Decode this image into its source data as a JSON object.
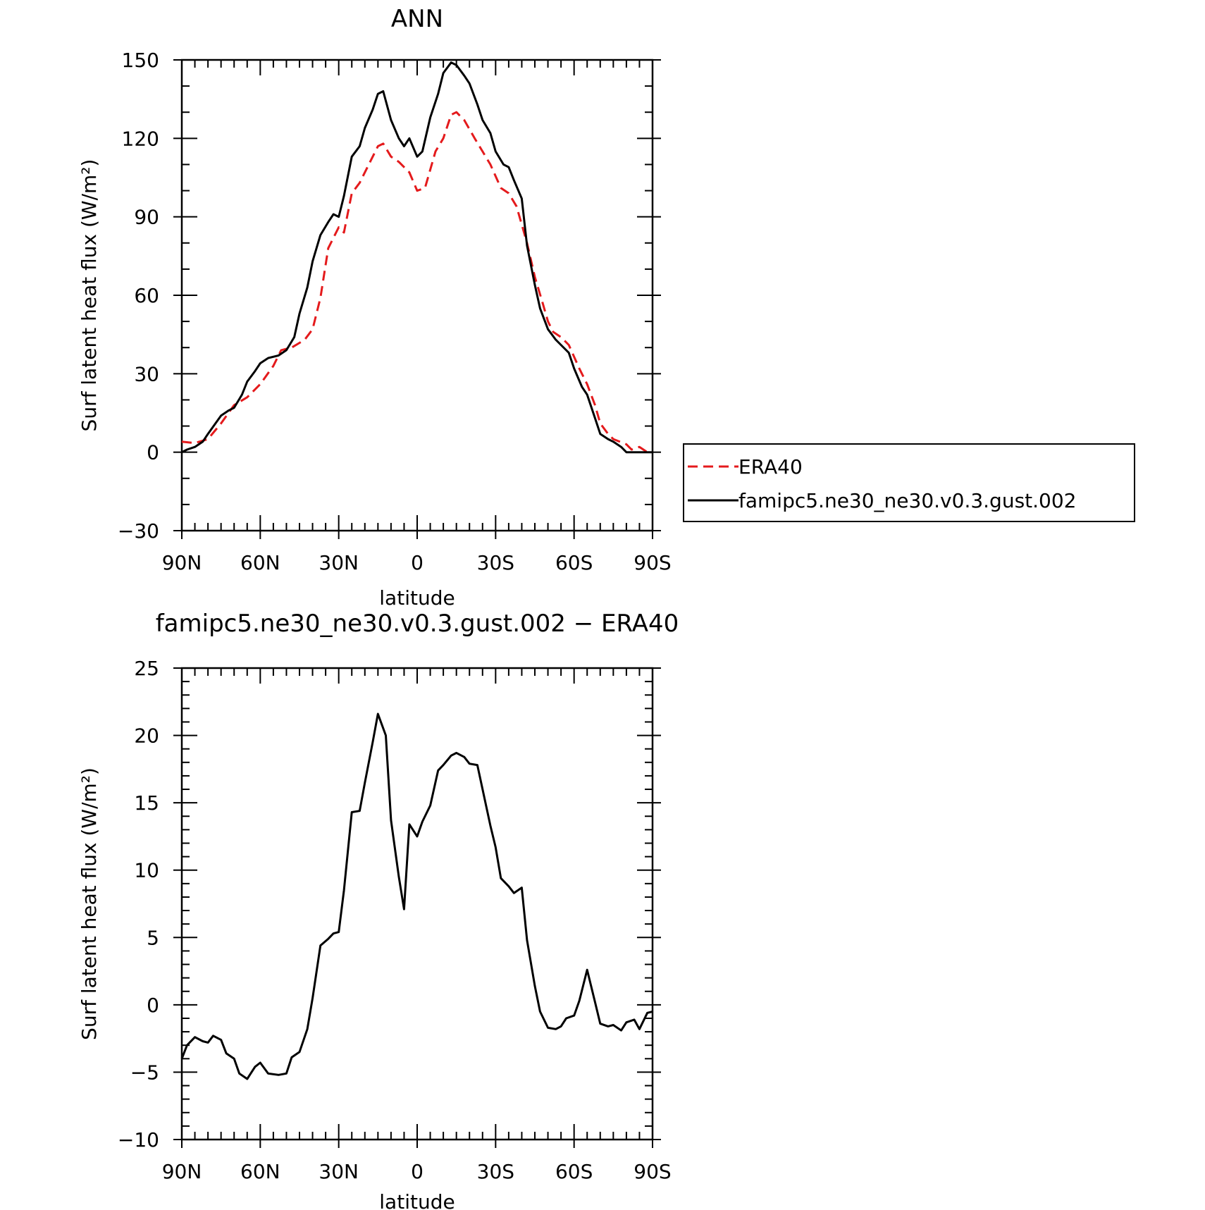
{
  "chart_data": [
    {
      "type": "line",
      "title": "ANN",
      "xlabel": "latitude",
      "ylabel": "Surf latent heat flux (W/m²)",
      "xlim": [
        90,
        -90
      ],
      "ylim": [
        -30,
        150
      ],
      "x_ticks": [
        90,
        60,
        30,
        0,
        -30,
        -60,
        -90
      ],
      "x_tick_labels": [
        "90N",
        "60N",
        "30N",
        "0",
        "30S",
        "60S",
        "90S"
      ],
      "y_ticks": [
        -30,
        0,
        30,
        60,
        90,
        120,
        150
      ],
      "y_tick_labels": [
        "−30",
        "0",
        "30",
        "60",
        "90",
        "120",
        "150"
      ],
      "legend_position": "right",
      "series": [
        {
          "name": "ERA40",
          "color": "#e41a1c",
          "style": "dashed",
          "points": [
            [
              90,
              4
            ],
            [
              85,
              3.5
            ],
            [
              80,
              5
            ],
            [
              75,
              11
            ],
            [
              70,
              18
            ],
            [
              65,
              21
            ],
            [
              60,
              26
            ],
            [
              55,
              33
            ],
            [
              52,
              39
            ],
            [
              48,
              40
            ],
            [
              43,
              43
            ],
            [
              40,
              47
            ],
            [
              37,
              59
            ],
            [
              34,
              78
            ],
            [
              30,
              86
            ],
            [
              28,
              84
            ],
            [
              25,
              99
            ],
            [
              22,
              103
            ],
            [
              18,
              111
            ],
            [
              15,
              117
            ],
            [
              13,
              118
            ],
            [
              10,
              113
            ],
            [
              7,
              111
            ],
            [
              3,
              107
            ],
            [
              0,
              100
            ],
            [
              -3,
              101
            ],
            [
              -7,
              115
            ],
            [
              -10,
              120
            ],
            [
              -13,
              129
            ],
            [
              -15,
              130
            ],
            [
              -18,
              127
            ],
            [
              -22,
              120
            ],
            [
              -25,
              115
            ],
            [
              -28,
              110
            ],
            [
              -32,
              101
            ],
            [
              -35,
              99
            ],
            [
              -38,
              94
            ],
            [
              -42,
              80
            ],
            [
              -45,
              67
            ],
            [
              -48,
              57
            ],
            [
              -50,
              50
            ],
            [
              -52,
              46
            ],
            [
              -55,
              44
            ],
            [
              -58,
              41
            ],
            [
              -62,
              32
            ],
            [
              -65,
              26
            ],
            [
              -68,
              18
            ],
            [
              -70,
              11
            ],
            [
              -73,
              7
            ],
            [
              -75,
              5
            ],
            [
              -80,
              3
            ],
            [
              -82,
              1
            ],
            [
              -85,
              2
            ],
            [
              -88,
              0
            ],
            [
              -90,
              0
            ]
          ]
        },
        {
          "name": "famipc5.ne30_ne30.v0.3.gust.002",
          "color": "#000000",
          "style": "solid",
          "points": [
            [
              90,
              0
            ],
            [
              88,
              1
            ],
            [
              85,
              2
            ],
            [
              82,
              4
            ],
            [
              80,
              7
            ],
            [
              75,
              14
            ],
            [
              72,
              16
            ],
            [
              70,
              17
            ],
            [
              67,
              22
            ],
            [
              65,
              27
            ],
            [
              62,
              31
            ],
            [
              60,
              34
            ],
            [
              57,
              36
            ],
            [
              53,
              37
            ],
            [
              50,
              39
            ],
            [
              47,
              44
            ],
            [
              45,
              53
            ],
            [
              42,
              63
            ],
            [
              40,
              73
            ],
            [
              37,
              83
            ],
            [
              34,
              88
            ],
            [
              32,
              91
            ],
            [
              30,
              90
            ],
            [
              28,
              98
            ],
            [
              25,
              113
            ],
            [
              22,
              117
            ],
            [
              20,
              124
            ],
            [
              17,
              131
            ],
            [
              15,
              137
            ],
            [
              13,
              138
            ],
            [
              10,
              127
            ],
            [
              7,
              120
            ],
            [
              5,
              117
            ],
            [
              3,
              120
            ],
            [
              0,
              113
            ],
            [
              -2,
              115
            ],
            [
              -5,
              128
            ],
            [
              -8,
              137
            ],
            [
              -10,
              145
            ],
            [
              -13,
              149
            ],
            [
              -15,
              148
            ],
            [
              -18,
              144
            ],
            [
              -20,
              141
            ],
            [
              -23,
              133
            ],
            [
              -25,
              127
            ],
            [
              -28,
              122
            ],
            [
              -30,
              115
            ],
            [
              -33,
              110
            ],
            [
              -35,
              109
            ],
            [
              -37,
              104
            ],
            [
              -40,
              97
            ],
            [
              -42,
              79
            ],
            [
              -45,
              64
            ],
            [
              -47,
              55
            ],
            [
              -50,
              47
            ],
            [
              -53,
              43
            ],
            [
              -55,
              41
            ],
            [
              -58,
              38
            ],
            [
              -60,
              32
            ],
            [
              -63,
              25
            ],
            [
              -65,
              22
            ],
            [
              -68,
              13
            ],
            [
              -70,
              7
            ],
            [
              -73,
              5
            ],
            [
              -75,
              4
            ],
            [
              -78,
              2
            ],
            [
              -80,
              0
            ],
            [
              -83,
              0
            ],
            [
              -85,
              0
            ],
            [
              -88,
              0
            ],
            [
              -90,
              0
            ]
          ]
        }
      ]
    },
    {
      "type": "line",
      "title": "famipc5.ne30_ne30.v0.3.gust.002 − ERA40",
      "xlabel": "latitude",
      "ylabel": "Surf latent heat flux (W/m²)",
      "xlim": [
        90,
        -90
      ],
      "ylim": [
        -10,
        25
      ],
      "x_ticks": [
        90,
        60,
        30,
        0,
        -30,
        -60,
        -90
      ],
      "x_tick_labels": [
        "90N",
        "60N",
        "30N",
        "0",
        "30S",
        "60S",
        "90S"
      ],
      "y_ticks": [
        -10,
        -5,
        0,
        5,
        10,
        15,
        20,
        25
      ],
      "y_tick_labels": [
        "−10",
        "−5",
        "0",
        "5",
        "10",
        "15",
        "20",
        "25"
      ],
      "series": [
        {
          "color": "#000000",
          "style": "solid",
          "points": [
            [
              90,
              -4
            ],
            [
              88,
              -3
            ],
            [
              85,
              -2.4
            ],
            [
              82,
              -2.7
            ],
            [
              80,
              -2.8
            ],
            [
              78,
              -2.3
            ],
            [
              75,
              -2.6
            ],
            [
              73,
              -3.6
            ],
            [
              70,
              -4
            ],
            [
              68,
              -5.1
            ],
            [
              65,
              -5.5
            ],
            [
              62,
              -4.6
            ],
            [
              60,
              -4.3
            ],
            [
              57,
              -5.1
            ],
            [
              53,
              -5.2
            ],
            [
              50,
              -5.1
            ],
            [
              48,
              -3.9
            ],
            [
              45,
              -3.5
            ],
            [
              42,
              -1.8
            ],
            [
              40,
              0.5
            ],
            [
              37,
              4.4
            ],
            [
              34,
              4.9
            ],
            [
              32,
              5.3
            ],
            [
              30,
              5.4
            ],
            [
              28,
              8.5
            ],
            [
              25,
              14.3
            ],
            [
              22,
              14.4
            ],
            [
              20,
              16.5
            ],
            [
              17,
              19.5
            ],
            [
              15,
              21.6
            ],
            [
              12,
              20
            ],
            [
              10,
              13.7
            ],
            [
              7,
              9.5
            ],
            [
              5,
              7.1
            ],
            [
              3,
              13.4
            ],
            [
              0,
              12.5
            ],
            [
              -2,
              13.6
            ],
            [
              -5,
              14.8
            ],
            [
              -8,
              17.4
            ],
            [
              -10,
              17.8
            ],
            [
              -13,
              18.5
            ],
            [
              -15,
              18.7
            ],
            [
              -18,
              18.4
            ],
            [
              -20,
              17.9
            ],
            [
              -23,
              17.8
            ],
            [
              -25,
              16
            ],
            [
              -28,
              13.3
            ],
            [
              -30,
              11.7
            ],
            [
              -32,
              9.4
            ],
            [
              -35,
              8.8
            ],
            [
              -37,
              8.3
            ],
            [
              -40,
              8.7
            ],
            [
              -42,
              4.8
            ],
            [
              -45,
              1.4
            ],
            [
              -47,
              -0.5
            ],
            [
              -50,
              -1.7
            ],
            [
              -53,
              -1.8
            ],
            [
              -55,
              -1.6
            ],
            [
              -57,
              -1
            ],
            [
              -60,
              -0.8
            ],
            [
              -62,
              0.3
            ],
            [
              -65,
              2.6
            ],
            [
              -68,
              0.2
            ],
            [
              -70,
              -1.4
            ],
            [
              -73,
              -1.6
            ],
            [
              -75,
              -1.5
            ],
            [
              -78,
              -1.9
            ],
            [
              -80,
              -1.3
            ],
            [
              -83,
              -1.1
            ],
            [
              -85,
              -1.8
            ],
            [
              -88,
              -0.6
            ],
            [
              -90,
              -0.5
            ]
          ]
        }
      ]
    }
  ]
}
